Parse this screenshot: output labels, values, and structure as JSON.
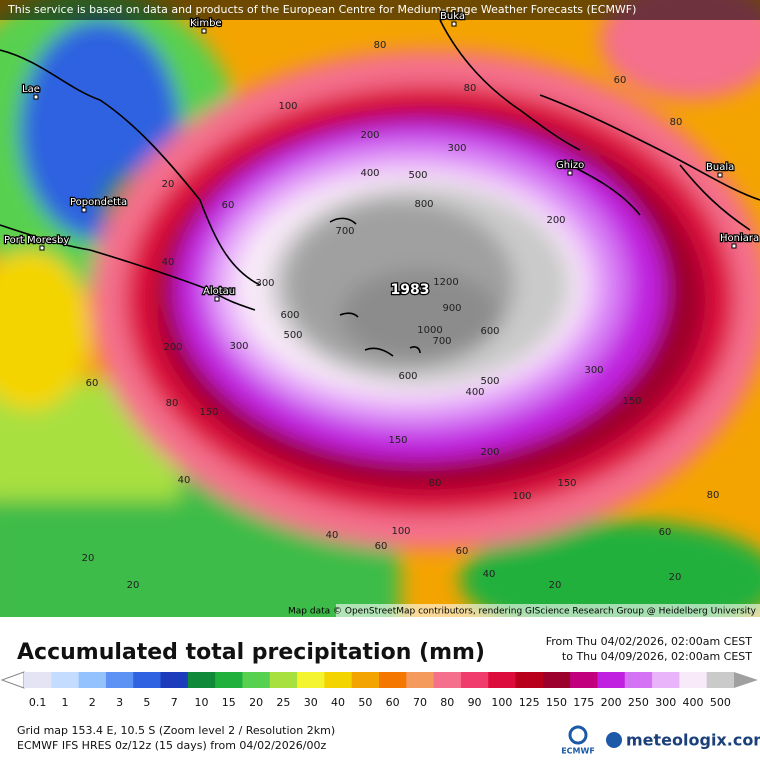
{
  "header": {
    "notice": "This service is based on data and products of the European Centre for Medium-range Weather Forecasts (ECMWF)"
  },
  "map": {
    "places": [
      "Kimbe",
      "Lae",
      "Popondetta",
      "Port Moresby",
      "Alotau",
      "Buka",
      "Ghizo",
      "Buala",
      "Honiara"
    ],
    "peak": "1983",
    "contour_labels": [
      "300",
      "400",
      "500",
      "800",
      "700",
      "1200",
      "900",
      "600",
      "500",
      "1000",
      "700",
      "600",
      "600",
      "400",
      "500",
      "300",
      "300",
      "300",
      "200",
      "200",
      "200",
      "150",
      "150",
      "100",
      "80",
      "80",
      "60",
      "80",
      "60",
      "40",
      "20",
      "60",
      "80",
      "40",
      "20",
      "20",
      "40",
      "60",
      "60",
      "40",
      "20",
      "20",
      "60",
      "80",
      "100",
      "80",
      "100",
      "150",
      "200",
      "150"
    ],
    "attribution": "Map data © OpenStreetMap contributors, rendering GIScience Research Group @ Heidelberg University"
  },
  "legend": {
    "title": "Accumulated total precipitation (mm)",
    "from": "From Thu 04/02/2026, 02:00am CEST",
    "to": "to Thu 04/09/2026, 02:00am CEST",
    "scale": [
      {
        "label": "0.1",
        "color": "#e4e4f4"
      },
      {
        "label": "1",
        "color": "#c4dcff"
      },
      {
        "label": "2",
        "color": "#94c2ff"
      },
      {
        "label": "3",
        "color": "#5c92f4"
      },
      {
        "label": "5",
        "color": "#2f62e0"
      },
      {
        "label": "7",
        "color": "#1c3cbc"
      },
      {
        "label": "10",
        "color": "#108a38"
      },
      {
        "label": "15",
        "color": "#22b03c"
      },
      {
        "label": "20",
        "color": "#58d050"
      },
      {
        "label": "25",
        "color": "#a8e040"
      },
      {
        "label": "30",
        "color": "#f4f430"
      },
      {
        "label": "40",
        "color": "#f4d400"
      },
      {
        "label": "50",
        "color": "#f4a400"
      },
      {
        "label": "60",
        "color": "#f47800"
      },
      {
        "label": "70",
        "color": "#f49a5c"
      },
      {
        "label": "80",
        "color": "#f4708c"
      },
      {
        "label": "90",
        "color": "#f03c6c"
      },
      {
        "label": "100",
        "color": "#dc0c3c"
      },
      {
        "label": "125",
        "color": "#b8001c"
      },
      {
        "label": "150",
        "color": "#9c002c"
      },
      {
        "label": "175",
        "color": "#c0007c"
      },
      {
        "label": "200",
        "color": "#c020e0"
      },
      {
        "label": "250",
        "color": "#d474f4"
      },
      {
        "label": "300",
        "color": "#eab4fa"
      },
      {
        "label": "400",
        "color": "#f8eaf8"
      },
      {
        "label": "500",
        "color": "#cacaca"
      }
    ]
  },
  "footer": {
    "grid": "Grid map 153.4 E, 10.5 S (Zoom level 2 / Resolution 2km)",
    "model": "ECMWF IFS HRES 0z/12z (15 days) from  04/02/2026/00z",
    "ecmwf": "ECMWF",
    "brand": "meteologix.com"
  }
}
